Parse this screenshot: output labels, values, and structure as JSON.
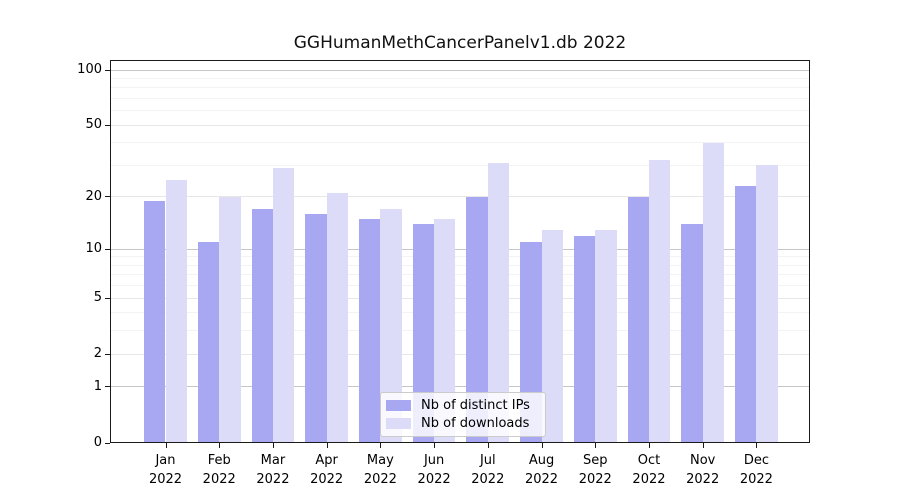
{
  "figure": {
    "title": "GGHumanMethCancerPanelv1.db 2022"
  },
  "chart_data": {
    "type": "bar",
    "title": "GGHumanMethCancerPanelv1.db 2022",
    "categories": [
      "Jan",
      "Feb",
      "Mar",
      "Apr",
      "May",
      "Jun",
      "Jul",
      "Aug",
      "Sep",
      "Oct",
      "Nov",
      "Dec"
    ],
    "year_label": "2022",
    "series": [
      {
        "name": "Nb of distinct IPs",
        "color": "#a8a8f2",
        "values": [
          19,
          11,
          17,
          16,
          15,
          14,
          20,
          11,
          12,
          20,
          14,
          23
        ]
      },
      {
        "name": "Nb of downloads",
        "color": "#dcdcf8",
        "values": [
          25,
          20,
          29,
          21,
          17,
          15,
          31,
          13,
          13,
          32,
          40,
          30
        ]
      }
    ],
    "xlabel": "",
    "ylabel": "",
    "ylim": [
      0,
      100
    ],
    "yscale": "log10(1+v)",
    "yticks": [
      0,
      1,
      2,
      5,
      10,
      20,
      50,
      100
    ],
    "grid": {
      "minor_values": [
        3,
        4,
        6,
        7,
        8,
        9,
        30,
        40,
        60,
        70,
        80,
        90
      ],
      "mid_values": [
        2,
        5,
        20,
        50
      ],
      "decade_values": [
        1,
        10,
        100
      ],
      "minor_color": "#f3f3f3",
      "mid_color": "#e7e7e7",
      "decade_color": "#c6c6c6"
    },
    "legend": {
      "position": "bottom-center",
      "entries": [
        "Nb of distinct IPs",
        "Nb of downloads"
      ]
    }
  }
}
